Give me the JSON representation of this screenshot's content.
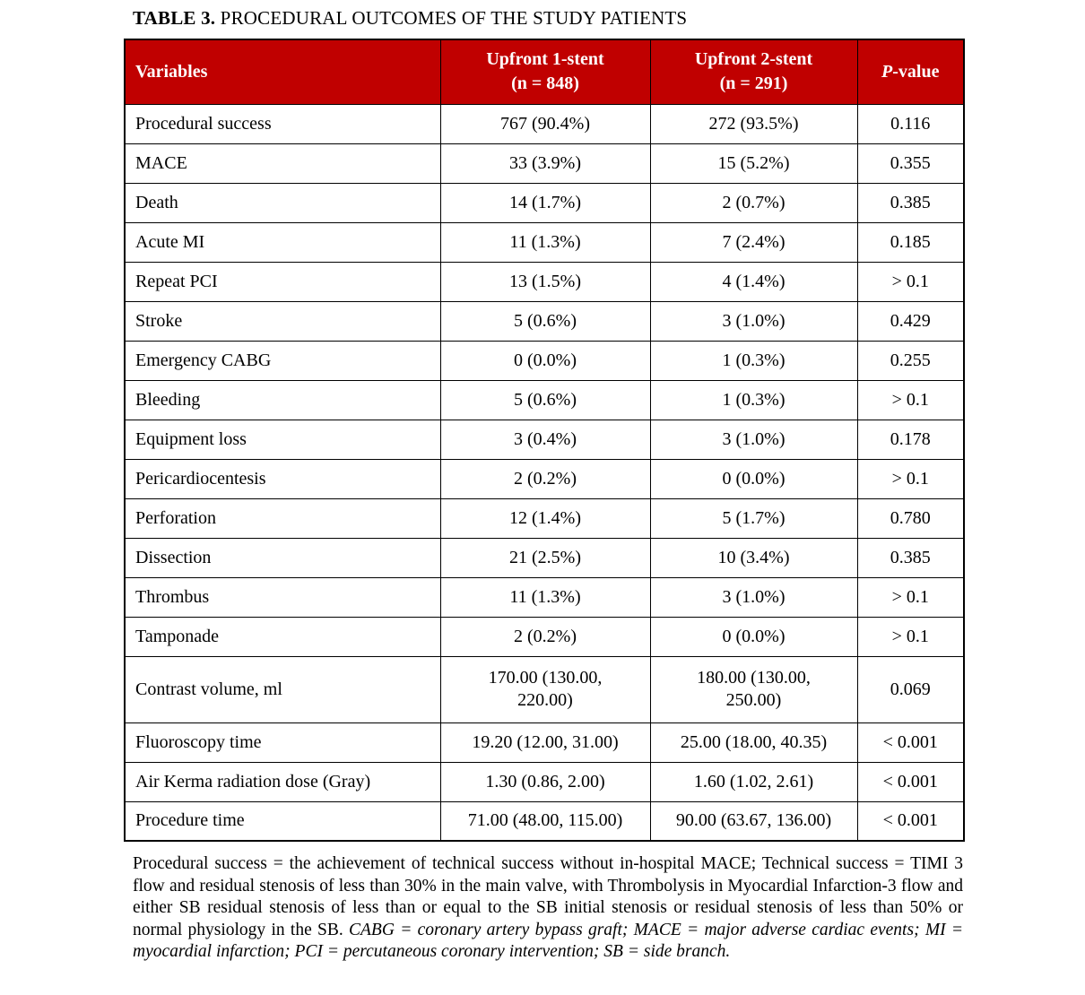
{
  "title": {
    "label": "TABLE 3.",
    "text": " PROCEDURAL OUTCOMES OF THE STUDY PATIENTS"
  },
  "colors": {
    "header_bg": "#C00000",
    "header_text": "#FFFFFF",
    "border": "#000000"
  },
  "table": {
    "header": {
      "variables": "Variables",
      "stent1": [
        "Upfront 1-stent",
        "(n = 848)"
      ],
      "stent2": [
        "Upfront 2-stent",
        "(n = 291)"
      ],
      "pvalue_italic": "P",
      "pvalue_rest": "-value"
    },
    "rows": [
      {
        "variable": "Procedural success",
        "stent1": "767 (90.4%)",
        "stent2": "272 (93.5%)",
        "p": "0.116"
      },
      {
        "variable": "MACE",
        "stent1": "33 (3.9%)",
        "stent2": "15 (5.2%)",
        "p": "0.355"
      },
      {
        "variable": "Death",
        "stent1": "14 (1.7%)",
        "stent2": "2 (0.7%)",
        "p": "0.385"
      },
      {
        "variable": "Acute MI",
        "stent1": "11 (1.3%)",
        "stent2": "7 (2.4%)",
        "p": "0.185"
      },
      {
        "variable": "Repeat PCI",
        "stent1": "13 (1.5%)",
        "stent2": "4 (1.4%)",
        "p": "> 0.1"
      },
      {
        "variable": "Stroke",
        "stent1": "5 (0.6%)",
        "stent2": "3 (1.0%)",
        "p": "0.429"
      },
      {
        "variable": "Emergency CABG",
        "stent1": "0 (0.0%)",
        "stent2": "1 (0.3%)",
        "p": "0.255"
      },
      {
        "variable": "Bleeding",
        "stent1": "5 (0.6%)",
        "stent2": "1 (0.3%)",
        "p": "> 0.1"
      },
      {
        "variable": "Equipment loss",
        "stent1": "3 (0.4%)",
        "stent2": "3 (1.0%)",
        "p": "0.178"
      },
      {
        "variable": "Pericardiocentesis",
        "stent1": "2 (0.2%)",
        "stent2": "0 (0.0%)",
        "p": "> 0.1"
      },
      {
        "variable": "Perforation",
        "stent1": "12 (1.4%)",
        "stent2": "5 (1.7%)",
        "p": "0.780"
      },
      {
        "variable": "Dissection",
        "stent1": "21 (2.5%)",
        "stent2": "10 (3.4%)",
        "p": "0.385"
      },
      {
        "variable": "Thrombus",
        "stent1": "11 (1.3%)",
        "stent2": "3 (1.0%)",
        "p": "> 0.1"
      },
      {
        "variable": "Tamponade",
        "stent1": "2 (0.2%)",
        "stent2": "0 (0.0%)",
        "p": "> 0.1"
      },
      {
        "variable": "Contrast volume, ml",
        "stent1": [
          "170.00 (130.00,",
          "220.00)"
        ],
        "stent2": [
          "180.00 (130.00,",
          "250.00)"
        ],
        "p": "0.069"
      },
      {
        "variable": "Fluoroscopy time",
        "stent1": "19.20 (12.00, 31.00)",
        "stent2": "25.00 (18.00, 40.35)",
        "p": "< 0.001"
      },
      {
        "variable": "Air Kerma radiation dose (Gray)",
        "stent1": "1.30 (0.86, 2.00)",
        "stent2": "1.60 (1.02, 2.61)",
        "p": "< 0.001"
      },
      {
        "variable": "Procedure time",
        "stent1": "71.00 (48.00, 115.00)",
        "stent2": "90.00 (63.67, 136.00)",
        "p": "< 0.001"
      }
    ]
  },
  "footnote": {
    "regular": "Procedural success = the achievement of technical success without in-hospital MACE; Technical success = TIMI 3 flow and residual stenosis of less than 30% in the main valve, with Thrombolysis in Myocardial Infarction-3 flow and either SB residual stenosis of less than or equal to the SB initial stenosis or residual stenosis of less than 50% or normal physiology in the SB. ",
    "italic": "CABG = coronary artery bypass graft; MACE = major adverse cardiac events; MI = myocardial infarction; PCI = percutaneous coronary intervention; SB = side branch."
  }
}
